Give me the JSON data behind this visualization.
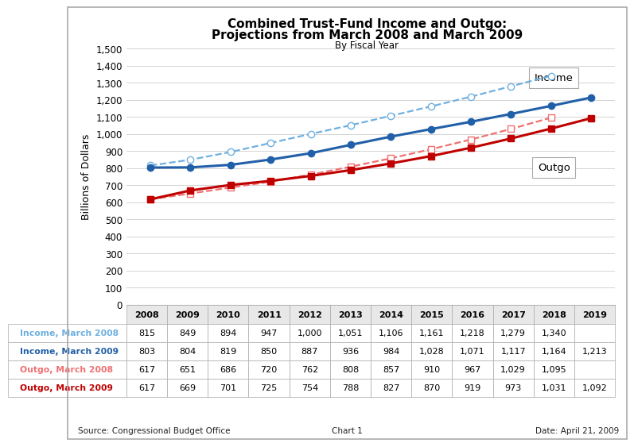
{
  "title_line1": "Combined Trust-Fund Income and Outgo:",
  "title_line2": "Projections from March 2008 and March 2009",
  "title_line3": "By Fiscal Year",
  "ylabel": "Billions of Dollars",
  "years": [
    2008,
    2009,
    2010,
    2011,
    2012,
    2013,
    2014,
    2015,
    2016,
    2017,
    2018,
    2019
  ],
  "income_march2008": [
    815,
    849,
    894,
    947,
    1000,
    1051,
    1106,
    1161,
    1218,
    1279,
    1340,
    null
  ],
  "income_march2009": [
    803,
    804,
    819,
    850,
    887,
    936,
    984,
    1028,
    1071,
    1117,
    1164,
    1213
  ],
  "outgo_march2008": [
    617,
    651,
    686,
    720,
    762,
    808,
    857,
    910,
    967,
    1029,
    1095,
    null
  ],
  "outgo_march2009": [
    617,
    669,
    701,
    725,
    754,
    788,
    827,
    870,
    919,
    973,
    1031,
    1092
  ],
  "ylim": [
    0,
    1500
  ],
  "yticks": [
    0,
    100,
    200,
    300,
    400,
    500,
    600,
    700,
    800,
    900,
    1000,
    1100,
    1200,
    1300,
    1400,
    1500
  ],
  "income_label_box_text": "Income",
  "outgo_label_box_text": "Outgo",
  "color_blue_dashed": "#6EB0E0",
  "color_blue_solid": "#2160A8",
  "color_red_dashed": "#F07070",
  "color_red_solid": "#C00000",
  "background_color": "#FFFFFF",
  "source_text": "Source: Congressional Budget Office",
  "chart_label": "Chart 1",
  "date_text": "Date: April 21, 2009",
  "table_cols": [
    "2008",
    "2009",
    "2010",
    "2011",
    "2012",
    "2013",
    "2014",
    "2015",
    "2016",
    "2017",
    "2018",
    "2019"
  ],
  "table_rows": [
    [
      "Income, March 2008",
      "815",
      "849",
      "894",
      "947",
      "1,000",
      "1,051",
      "1,106",
      "1,161",
      "1,218",
      "1,279",
      "1,340",
      ""
    ],
    [
      "Income, March 2009",
      "803",
      "804",
      "819",
      "850",
      "887",
      "936",
      "984",
      "1,028",
      "1,071",
      "1,117",
      "1,164",
      "1,213"
    ],
    [
      "Outgo, March 2008",
      "617",
      "651",
      "686",
      "720",
      "762",
      "808",
      "857",
      "910",
      "967",
      "1,029",
      "1,095",
      ""
    ],
    [
      "Outgo, March 2009",
      "617",
      "669",
      "701",
      "725",
      "754",
      "788",
      "827",
      "870",
      "919",
      "973",
      "1,031",
      "1,092"
    ]
  ]
}
